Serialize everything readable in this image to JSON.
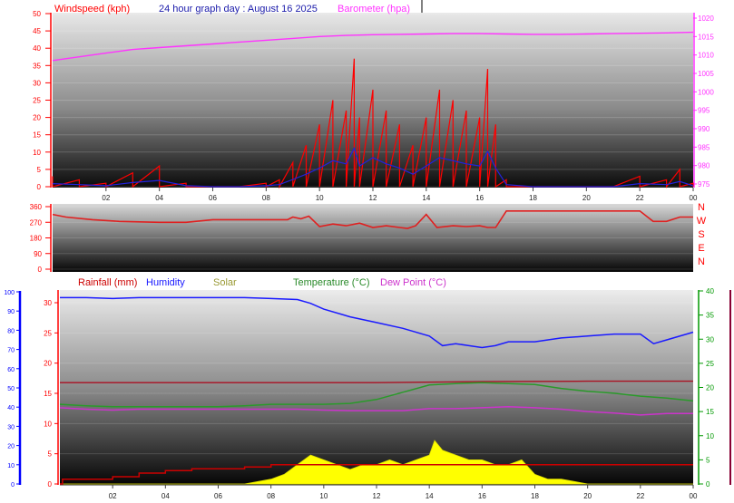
{
  "colors": {
    "wind": "#ff0000",
    "baro": "#ff33ff",
    "dir": "#e02020",
    "rain": "#cc0000",
    "humidity": "#1a1aff",
    "solar": "#ffff00",
    "temperature": "#2a9a2a",
    "dewpoint": "#cc33cc",
    "axis_blue": "#0000ff",
    "axis_red": "#ff0000",
    "axis_green": "#009900"
  },
  "chart_data": [
    {
      "type": "line",
      "title": "24 hour graph day : August 16 2025",
      "xticks": [
        "02",
        "04",
        "06",
        "08",
        "10",
        "12",
        "14",
        "16",
        "18",
        "20",
        "22",
        "00"
      ],
      "left_axis": {
        "label": "Windspeed (kph)",
        "ylim": [
          0,
          50
        ],
        "ticks": [
          "0",
          "5",
          "10",
          "15",
          "20",
          "25",
          "30",
          "35",
          "40",
          "45",
          "50"
        ]
      },
      "right_axis": {
        "label": "Barometer (hpa)",
        "ylim": [
          975,
          1020
        ],
        "ticks": [
          "975",
          "980",
          "985",
          "990",
          "995",
          "1000",
          "1005",
          "1010",
          "1015",
          "1020"
        ]
      },
      "series": [
        {
          "name": "Windspeed (kph)",
          "x": [
            0,
            1,
            2,
            3,
            4,
            5,
            6,
            7,
            8,
            8.5,
            9,
            9.5,
            10,
            10.5,
            11,
            11.3,
            11.5,
            12,
            12.5,
            13,
            13.5,
            14,
            14.5,
            15,
            15.5,
            16,
            16.3,
            16.6,
            17,
            18,
            19,
            20,
            21,
            22,
            23,
            23.5,
            24
          ],
          "y": [
            3,
            2,
            1,
            4,
            6,
            1,
            0,
            0,
            1,
            2,
            7,
            12,
            18,
            25,
            22,
            37,
            20,
            28,
            22,
            18,
            12,
            20,
            28,
            25,
            22,
            20,
            34,
            18,
            2,
            0,
            0,
            0,
            0,
            3,
            2,
            5,
            1
          ]
        },
        {
          "name": "Barometer (hpa)",
          "x": [
            0,
            1,
            2,
            3,
            4,
            5,
            6,
            7,
            8,
            9,
            10,
            11,
            12,
            13,
            14,
            15,
            16,
            17,
            18,
            19,
            20,
            21,
            22,
            23,
            24
          ],
          "y": [
            1008.5,
            1009.5,
            1010.5,
            1011.5,
            1012.0,
            1012.5,
            1013.0,
            1013.5,
            1014.0,
            1014.5,
            1015.0,
            1015.3,
            1015.5,
            1015.6,
            1015.7,
            1015.8,
            1015.8,
            1015.7,
            1015.6,
            1015.6,
            1015.7,
            1015.8,
            1015.9,
            1016.0,
            1016.2
          ]
        }
      ]
    },
    {
      "type": "line",
      "axis_ticks": [
        "0",
        "90",
        "180",
        "270",
        "360"
      ],
      "compass": [
        "N",
        "W",
        "S",
        "E",
        "N"
      ],
      "ylim": [
        0,
        360
      ],
      "series": [
        {
          "name": "Wind Direction",
          "x": [
            0,
            0.5,
            1.5,
            2.5,
            4,
            5,
            6,
            7,
            8,
            8.8,
            9,
            9.3,
            9.6,
            10,
            10.5,
            11,
            11.5,
            12,
            12.5,
            13,
            13.3,
            13.6,
            14,
            14.4,
            15,
            15.5,
            16,
            16.3,
            16.5,
            16.6,
            17,
            18,
            19,
            20,
            21,
            22,
            22.5,
            23,
            23.5,
            24
          ],
          "y": [
            315,
            300,
            285,
            275,
            270,
            270,
            285,
            285,
            285,
            285,
            300,
            290,
            305,
            245,
            260,
            250,
            265,
            240,
            250,
            240,
            235,
            250,
            315,
            240,
            250,
            245,
            250,
            240,
            240,
            240,
            335,
            335,
            335,
            335,
            335,
            335,
            275,
            275,
            300,
            300
          ]
        }
      ]
    },
    {
      "type": "line",
      "xticks": [
        "02",
        "04",
        "06",
        "08",
        "10",
        "12",
        "14",
        "16",
        "18",
        "20",
        "22",
        "00"
      ],
      "legend": [
        "Rainfall (mm)",
        "Humidity",
        "Solar",
        "Temperature (°C)",
        "Dew Point (°C)"
      ],
      "left_axis_outer": {
        "ylim": [
          0,
          100
        ],
        "ticks": [
          "0",
          "10",
          "20",
          "30",
          "40",
          "50",
          "60",
          "70",
          "80",
          "90",
          "100"
        ]
      },
      "left_axis_inner": {
        "ylim": [
          0,
          30
        ],
        "ticks": [
          "0",
          "5",
          "10",
          "15",
          "20",
          "25",
          "30"
        ]
      },
      "right_axis": {
        "ylim": [
          0,
          40
        ],
        "ticks": [
          "0",
          "5",
          "10",
          "15",
          "20",
          "25",
          "30",
          "35",
          "40"
        ]
      },
      "series": [
        {
          "name": "Rainfall (mm)",
          "x": [
            0,
            0.1,
            1,
            2,
            3,
            4,
            5,
            6,
            7,
            8,
            9,
            10,
            11,
            12,
            13,
            14,
            15,
            16,
            17,
            18,
            19,
            20,
            21,
            22,
            23,
            24
          ],
          "y": [
            0.0,
            0.8,
            0.8,
            1.2,
            1.8,
            2.2,
            2.5,
            2.5,
            2.8,
            3.2,
            3.2,
            3.2,
            3.2,
            3.2,
            3.2,
            3.2,
            3.2,
            3.2,
            3.2,
            3.2,
            3.2,
            3.2,
            3.2,
            3.2,
            3.2,
            3.2
          ]
        },
        {
          "name": "Humidity",
          "x": [
            0,
            1,
            2,
            3,
            4,
            5,
            6,
            7,
            8,
            9,
            9.5,
            10,
            11,
            12,
            13,
            14,
            14.5,
            15,
            15.5,
            16,
            16.5,
            17,
            18,
            19,
            20,
            21,
            22,
            22.5,
            23,
            24
          ],
          "y": [
            97,
            97,
            96.5,
            97,
            97,
            97,
            97,
            97,
            96.5,
            96,
            94,
            91,
            87,
            84,
            81,
            77,
            72,
            73,
            72,
            71,
            72,
            74,
            74,
            76,
            77,
            78,
            78,
            73,
            75,
            79
          ]
        },
        {
          "name": "Solar",
          "x": [
            0,
            7,
            8,
            8.5,
            9,
            9.5,
            10,
            10.5,
            11,
            11.5,
            12,
            12.5,
            13,
            13.5,
            14,
            14.2,
            14.5,
            15,
            15.5,
            16,
            16.5,
            17,
            17.5,
            18,
            18.5,
            19,
            19.5,
            20,
            24
          ],
          "y": [
            0,
            0,
            1,
            2,
            4,
            6,
            5,
            4,
            3,
            4,
            4,
            5,
            4,
            5,
            6,
            9,
            7,
            6,
            5,
            5,
            4,
            4,
            5,
            2,
            1,
            1,
            0.5,
            0,
            0
          ]
        },
        {
          "name": "Temperature (°C)",
          "x": [
            0,
            1,
            2,
            3,
            4,
            5,
            6,
            7,
            8,
            9,
            10,
            11,
            12,
            13,
            14,
            15,
            16,
            17,
            18,
            19,
            20,
            21,
            22,
            23,
            24
          ],
          "y": [
            16.5,
            16.2,
            16.0,
            16.0,
            16.0,
            16.0,
            16.0,
            16.2,
            16.5,
            16.5,
            16.5,
            16.7,
            17.5,
            19.0,
            20.5,
            20.8,
            21.0,
            20.8,
            20.6,
            19.8,
            19.2,
            18.8,
            18.2,
            17.8,
            17.2
          ]
        },
        {
          "name": "Dew Point (°C)",
          "x": [
            0,
            1,
            2,
            3,
            4,
            5,
            6,
            7,
            8,
            9,
            10,
            11,
            12,
            13,
            14,
            15,
            16,
            17,
            18,
            19,
            20,
            21,
            22,
            23,
            24
          ],
          "y": [
            15.8,
            15.5,
            15.3,
            15.5,
            15.5,
            15.5,
            15.5,
            15.5,
            15.5,
            15.5,
            15.3,
            15.2,
            15.2,
            15.2,
            15.6,
            15.6,
            15.8,
            16.0,
            15.8,
            15.5,
            15.0,
            14.7,
            14.3,
            14.6,
            14.6
          ]
        },
        {
          "name": "Temperature (°C) max",
          "x": [
            0,
            4,
            8,
            12,
            16,
            20,
            24
          ],
          "y": [
            21.0,
            21.0,
            21.0,
            21.0,
            21.2,
            21.3,
            21.3
          ]
        }
      ]
    }
  ]
}
